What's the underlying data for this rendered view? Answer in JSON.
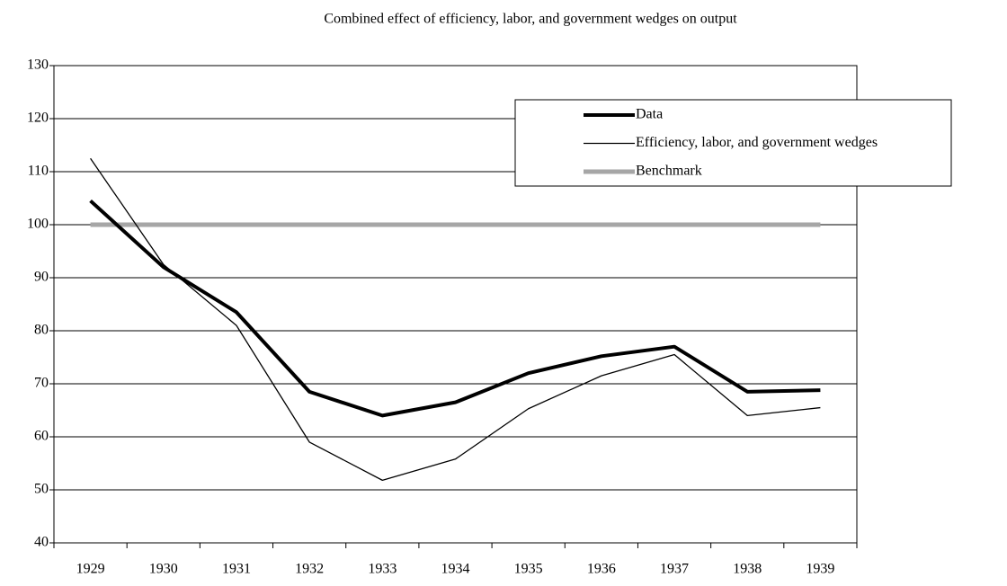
{
  "chart_data": {
    "type": "line",
    "title": "Combined effect of efficiency, labor, and government wedges on output",
    "categories": [
      "1929",
      "1930",
      "1931",
      "1932",
      "1933",
      "1934",
      "1935",
      "1936",
      "1937",
      "1938",
      "1939"
    ],
    "series": [
      {
        "name": "Data",
        "color": "#000000",
        "width": 4,
        "values": [
          104.5,
          92,
          83.5,
          68.5,
          64,
          66.5,
          72,
          75.2,
          77,
          68.5,
          68.8
        ]
      },
      {
        "name": "Efficiency, labor, and government wedges",
        "color": "#000000",
        "width": 1.3,
        "values": [
          112.5,
          92.5,
          81,
          59,
          51.8,
          55.8,
          65.3,
          71.5,
          75.5,
          64,
          65.5
        ]
      },
      {
        "name": "Benchmark",
        "color": "#a6a6a6",
        "width": 5,
        "values": [
          100,
          100,
          100,
          100,
          100,
          100,
          100,
          100,
          100,
          100,
          100
        ]
      }
    ],
    "ylim": [
      40,
      130
    ],
    "yticks": [
      40,
      50,
      60,
      70,
      80,
      90,
      100,
      110,
      120,
      130
    ],
    "grid": true,
    "legend": "top-right"
  }
}
